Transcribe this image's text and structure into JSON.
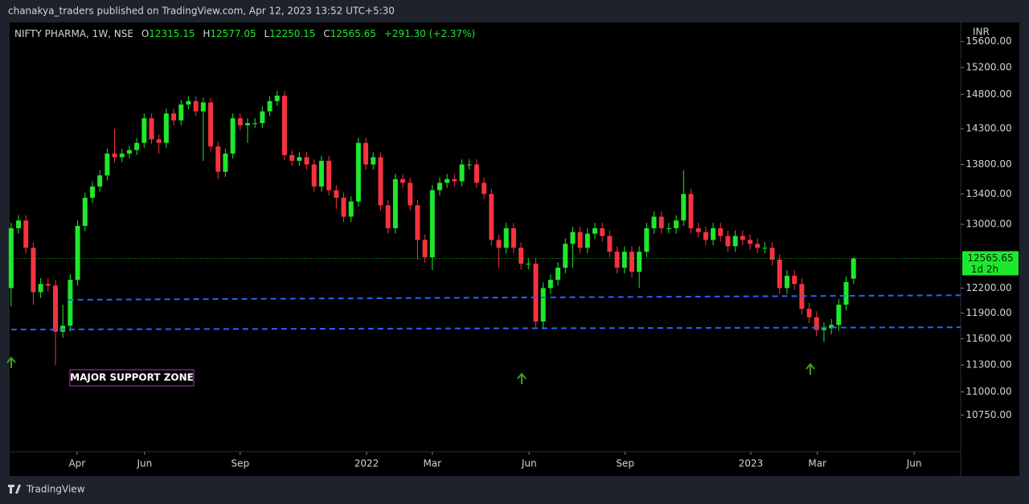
{
  "page": {
    "byline": "chanakya_traders published on TradingView.com, Apr 12, 2023 13:52 UTC+5:30",
    "brand": "TradingView"
  },
  "chart_data": {
    "type": "candlestick",
    "header": {
      "symbol": "NIFTY PHARMA, 1W, NSE",
      "o_label": "O",
      "h_label": "H",
      "l_label": "L",
      "c_label": "C",
      "change": "+291.30 (+2.37%)"
    },
    "currency": "INR",
    "countdown": "1d 2h",
    "annotation": "MAJOR SUPPORT ZONE",
    "log_scale": true,
    "up_color": "#1ee82c",
    "down_color": "#f5333f",
    "support_color": "#2962ff",
    "xlim": [
      -0.2,
      128.5
    ],
    "xticks": [
      {
        "value": 8.92,
        "label": "Apr"
      },
      {
        "value": 18.06,
        "label": "Jun"
      },
      {
        "value": 31.0,
        "label": "Sep"
      },
      {
        "value": 48.1,
        "label": "2022"
      },
      {
        "value": 57.0,
        "label": "Mar"
      },
      {
        "value": 70.1,
        "label": "Jun"
      },
      {
        "value": 83.1,
        "label": "Sep"
      },
      {
        "value": 100.1,
        "label": "2023"
      },
      {
        "value": 109.1,
        "label": "Mar"
      },
      {
        "value": 122.2,
        "label": "Jun"
      }
    ],
    "ylim": [
      10363,
      15898
    ],
    "yticks": [
      {
        "value": 10750,
        "label": "10750.00"
      },
      {
        "value": 11000,
        "label": "11000.00"
      },
      {
        "value": 11300,
        "label": "11300.00"
      },
      {
        "value": 11600,
        "label": "11600.00"
      },
      {
        "value": 11900,
        "label": "11900.00"
      },
      {
        "value": 12200,
        "label": "12200.00"
      },
      {
        "value": 13000,
        "label": "13000.00"
      },
      {
        "value": 13400,
        "label": "13400.00"
      },
      {
        "value": 13800,
        "label": "13800.00"
      },
      {
        "value": 14300,
        "label": "14300.00"
      },
      {
        "value": 14800,
        "label": "14800.00"
      },
      {
        "value": 15200,
        "label": "15200.00"
      },
      {
        "value": 15600,
        "label": "15600.00"
      }
    ],
    "support_lines": [
      {
        "start": [
          7.7,
          12058
        ],
        "end": [
          128.5,
          12113
        ]
      },
      {
        "start": [
          0,
          11706
        ],
        "end": [
          128.5,
          11732
        ]
      }
    ],
    "open": [
      12200,
      12950,
      13050,
      12700,
      12150,
      12250,
      12230,
      11680,
      11750,
      12300,
      12980,
      13350,
      13500,
      13650,
      13950,
      13900,
      13950,
      14000,
      14100,
      14450,
      14150,
      14100,
      14520,
      14420,
      14650,
      14700,
      14550,
      14680,
      14050,
      13700,
      13950,
      14450,
      14350,
      14380,
      14380,
      14550,
      14700,
      14780,
      13930,
      13850,
      13900,
      13800,
      13500,
      13850,
      13450,
      13350,
      13100,
      13300,
      14100,
      13800,
      13900,
      13250,
      12950,
      13600,
      13550,
      13250,
      12800,
      12580,
      13450,
      13550,
      13600,
      13570,
      13800,
      13800,
      13550,
      13400,
      12800,
      12700,
      12950,
      12700,
      12500,
      12500,
      11800,
      12200,
      12300,
      12450,
      12750,
      12900,
      12700,
      12880,
      12950,
      12850,
      12650,
      12450,
      12650,
      12400,
      12650,
      12950,
      13100,
      12950,
      12950,
      13050,
      13400,
      12950,
      12900,
      12800,
      12950,
      12850,
      12720,
      12850,
      12800,
      12750,
      12700,
      12700,
      12550,
      12200,
      12350,
      12250,
      11950,
      11850,
      11700,
      11720,
      11760,
      12000,
      12315.15
    ],
    "high": [
      13020,
      13120,
      13120,
      12770,
      12320,
      12320,
      12300,
      12000,
      12370,
      13050,
      13420,
      13570,
      13720,
      14020,
      14300,
      14020,
      14070,
      14170,
      14520,
      14520,
      14220,
      14590,
      14590,
      14720,
      14770,
      14770,
      14750,
      14750,
      14120,
      14020,
      14520,
      14520,
      14450,
      14450,
      14620,
      14770,
      14850,
      14850,
      14000,
      13970,
      13970,
      13870,
      13920,
      13920,
      13520,
      13420,
      13370,
      14170,
      14170,
      13970,
      13970,
      13320,
      13670,
      13670,
      13620,
      13320,
      12870,
      13520,
      13620,
      13670,
      13670,
      13870,
      13870,
      13870,
      13620,
      13470,
      12870,
      13020,
      13020,
      12770,
      12570,
      12570,
      12270,
      12370,
      12520,
      12820,
      12970,
      12970,
      12950,
      13020,
      13020,
      12920,
      12720,
      12720,
      12720,
      12720,
      13020,
      13170,
      13170,
      13020,
      13120,
      13720,
      13470,
      13020,
      12970,
      13020,
      13020,
      12920,
      12920,
      12920,
      12870,
      12820,
      12770,
      12770,
      12620,
      12420,
      12420,
      12320,
      12020,
      11920,
      11790,
      11830,
      12070,
      12340,
      12577.05
    ],
    "low": [
      11980,
      12880,
      12630,
      12000,
      12080,
      12160,
      11300,
      11610,
      11680,
      12230,
      12910,
      13280,
      13430,
      13580,
      13830,
      13830,
      13880,
      13930,
      14030,
      14080,
      13950,
      14030,
      14350,
      14350,
      14580,
      14480,
      13850,
      13980,
      13600,
      13630,
      13880,
      14280,
      14100,
      14310,
      14310,
      14480,
      14630,
      13860,
      13780,
      13780,
      13730,
      13430,
      13430,
      13380,
      13200,
      13030,
      13030,
      13230,
      13730,
      13730,
      13180,
      12880,
      12880,
      13480,
      13180,
      12550,
      12510,
      12420,
      13380,
      13480,
      13500,
      13500,
      13730,
      13480,
      13330,
      12730,
      12450,
      12630,
      12630,
      12430,
      12430,
      11730,
      11730,
      12130,
      12230,
      12380,
      12450,
      12630,
      12630,
      12810,
      12780,
      12580,
      12380,
      12380,
      12330,
      12200,
      12580,
      12880,
      12880,
      12880,
      12880,
      12980,
      12880,
      12830,
      12730,
      12730,
      12780,
      12650,
      12650,
      12730,
      12680,
      12630,
      12630,
      12480,
      12130,
      12130,
      12180,
      11880,
      11780,
      11630,
      11560,
      11650,
      11690,
      11930,
      12250.15
    ],
    "close": [
      12950,
      13050,
      12700,
      12150,
      12250,
      12230,
      11680,
      11750,
      12300,
      12980,
      13350,
      13500,
      13650,
      13950,
      13900,
      13950,
      14000,
      14100,
      14450,
      14150,
      14100,
      14520,
      14420,
      14650,
      14700,
      14550,
      14680,
      14050,
      13700,
      13950,
      14450,
      14350,
      14380,
      14380,
      14550,
      14700,
      14780,
      13930,
      13850,
      13900,
      13800,
      13500,
      13850,
      13450,
      13350,
      13100,
      13300,
      14100,
      13800,
      13900,
      13250,
      12950,
      13600,
      13550,
      13250,
      12800,
      12580,
      13450,
      13550,
      13600,
      13570,
      13800,
      13800,
      13550,
      13400,
      12800,
      12700,
      12950,
      12700,
      12500,
      12500,
      11800,
      12200,
      12300,
      12450,
      12750,
      12900,
      12700,
      12880,
      12950,
      12850,
      12650,
      12450,
      12650,
      12400,
      12650,
      12950,
      13100,
      12950,
      12950,
      13050,
      13400,
      12950,
      12900,
      12800,
      12950,
      12850,
      12720,
      12850,
      12800,
      12750,
      12700,
      12700,
      12550,
      12200,
      12350,
      12250,
      11950,
      11850,
      11700,
      11720,
      11760,
      12000,
      12274.35,
      12565.65
    ]
  }
}
